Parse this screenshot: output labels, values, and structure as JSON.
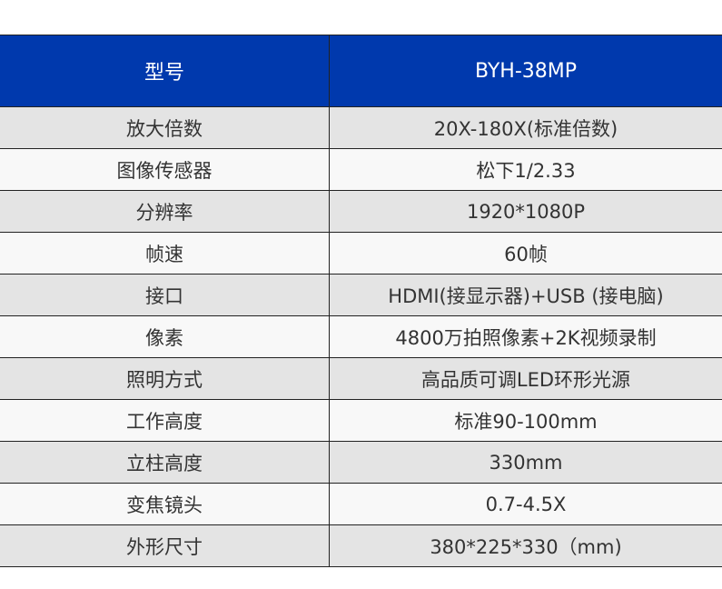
{
  "header": {
    "label": "型号",
    "value": "BYH-38MP"
  },
  "rows": [
    {
      "label": "放大倍数",
      "value": "20X-180X(标准倍数)"
    },
    {
      "label": "图像传感器",
      "value": "松下1/2.33"
    },
    {
      "label": "分辨率",
      "value": "1920*1080P"
    },
    {
      "label": "帧速",
      "value": "60帧"
    },
    {
      "label": "接口",
      "value": "HDMI(接显示器)+USB (接电脑)"
    },
    {
      "label": "像素",
      "value": "4800万拍照像素+2K视频录制"
    },
    {
      "label": "照明方式",
      "value": "高品质可调LED环形光源"
    },
    {
      "label": "工作高度",
      "value": "标准90-100mm"
    },
    {
      "label": "立柱高度",
      "value": "330mm"
    },
    {
      "label": "变焦镜头",
      "value": "0.7-4.5X"
    },
    {
      "label": "外形尺寸",
      "value": "380*225*330（mm)"
    }
  ],
  "colors": {
    "header_bg": "#0039ad",
    "row_odd": "#e4e4e4",
    "row_even": "#f8f8f8"
  }
}
